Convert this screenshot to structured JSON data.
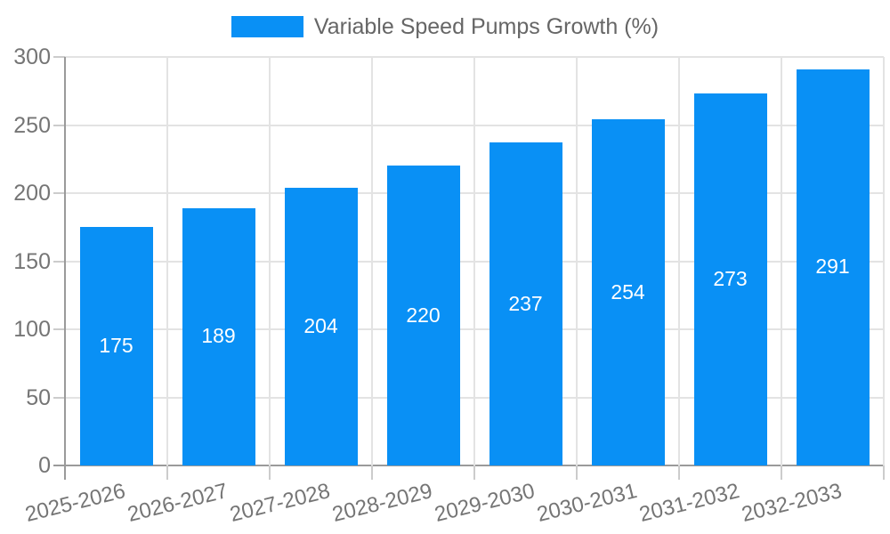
{
  "chart_data": {
    "type": "bar",
    "title": "Variable Speed Pumps Growth (%)",
    "series_name": "Variable Speed Pumps Growth (%)",
    "categories": [
      "2025-2026",
      "2026-2027",
      "2027-2028",
      "2028-2029",
      "2029-2030",
      "2030-2031",
      "2031-2032",
      "2032-2033"
    ],
    "values": [
      175,
      189,
      204,
      220,
      237,
      254,
      273,
      291
    ],
    "xlabel": "",
    "ylabel": "",
    "ylim": [
      0,
      300
    ],
    "y_ticks": [
      0,
      50,
      100,
      150,
      200,
      250,
      300
    ],
    "grid": true,
    "legend_position": "top",
    "value_labels": "inside-middle",
    "colors": {
      "bar": "#0990f5",
      "grid_line": "#e3e3e3",
      "axis_line": "#9a9a9a",
      "tick_mark": "#cccccc",
      "tick_text": "#757575",
      "legend_text": "#666666",
      "value_text": "#ffffff",
      "background": "#ffffff"
    }
  }
}
